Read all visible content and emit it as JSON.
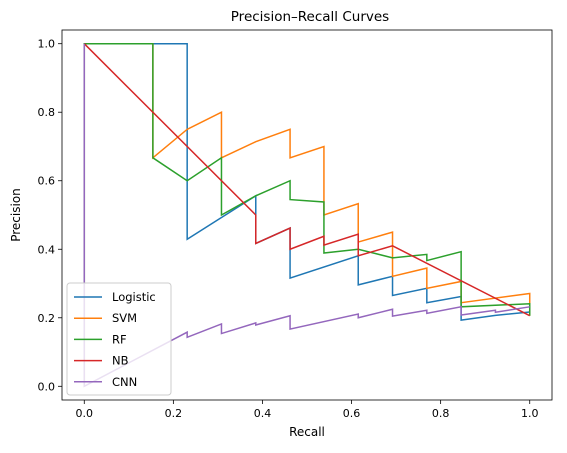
{
  "chart_data": {
    "type": "line",
    "title": "Precision–Recall Curves",
    "xlabel": "Recall",
    "ylabel": "Precision",
    "xlim": [
      -0.05,
      1.05
    ],
    "ylim": [
      -0.04,
      1.04
    ],
    "xticks": [
      0.0,
      0.2,
      0.4,
      0.6,
      0.8,
      1.0
    ],
    "yticks": [
      0.0,
      0.2,
      0.4,
      0.6,
      0.8,
      1.0
    ],
    "xtick_labels": [
      "0.0",
      "0.2",
      "0.4",
      "0.6",
      "0.8",
      "1.0"
    ],
    "ytick_labels": [
      "0.0",
      "0.2",
      "0.4",
      "0.6",
      "0.8",
      "1.0"
    ],
    "grid": false,
    "legend": "lower-left",
    "series": [
      {
        "name": "Logistic",
        "color": "#1f77b4",
        "x": [
          0.0,
          0.0,
          0.231,
          0.231,
          0.385,
          0.385,
          0.462,
          0.462,
          0.615,
          0.615,
          0.692,
          0.692,
          0.769,
          0.769,
          0.846,
          0.846,
          0.923,
          1.0
        ],
        "y": [
          0.0,
          1.0,
          1.0,
          0.429,
          0.556,
          0.417,
          0.462,
          0.316,
          0.381,
          0.296,
          0.321,
          0.265,
          0.286,
          0.244,
          0.262,
          0.193,
          0.207,
          0.217
        ]
      },
      {
        "name": "SVM",
        "color": "#ff7f0e",
        "x": [
          0.0,
          0.0,
          0.154,
          0.154,
          0.231,
          0.308,
          0.308,
          0.385,
          0.462,
          0.462,
          0.538,
          0.538,
          0.615,
          0.615,
          0.692,
          0.692,
          0.769,
          0.769,
          0.846,
          0.846,
          1.0,
          1.0
        ],
        "y": [
          0.0,
          1.0,
          1.0,
          0.667,
          0.75,
          0.8,
          0.667,
          0.714,
          0.75,
          0.667,
          0.7,
          0.5,
          0.533,
          0.421,
          0.45,
          0.321,
          0.345,
          0.286,
          0.306,
          0.244,
          0.271,
          0.206
        ]
      },
      {
        "name": "RF",
        "color": "#2ca02c",
        "x": [
          0.0,
          0.0,
          0.154,
          0.154,
          0.231,
          0.308,
          0.308,
          0.385,
          0.462,
          0.462,
          0.538,
          0.538,
          0.615,
          0.692,
          0.769,
          0.769,
          0.846,
          0.846,
          1.0,
          1.0
        ],
        "y": [
          0.0,
          1.0,
          1.0,
          0.667,
          0.6,
          0.667,
          0.5,
          0.556,
          0.6,
          0.545,
          0.538,
          0.389,
          0.4,
          0.375,
          0.385,
          0.367,
          0.393,
          0.232,
          0.241,
          0.206
        ]
      },
      {
        "name": "NB",
        "color": "#d62728",
        "x": [
          0.0,
          0.385,
          0.385,
          0.462,
          0.462,
          0.538,
          0.538,
          0.615,
          0.615,
          0.692,
          1.0
        ],
        "y": [
          1.0,
          0.5,
          0.417,
          0.462,
          0.4,
          0.438,
          0.412,
          0.444,
          0.381,
          0.41,
          0.206
        ]
      },
      {
        "name": "CNN",
        "color": "#9467bd",
        "x": [
          0.0,
          0.0,
          0.0,
          0.231,
          0.231,
          0.308,
          0.308,
          0.385,
          0.385,
          0.462,
          0.462,
          0.615,
          0.615,
          0.692,
          0.692,
          0.769,
          0.769,
          0.846,
          0.846,
          0.923,
          0.923,
          1.0
        ],
        "y": [
          1.0,
          0.0,
          0.0,
          0.158,
          0.143,
          0.182,
          0.154,
          0.185,
          0.179,
          0.206,
          0.167,
          0.211,
          0.2,
          0.225,
          0.205,
          0.222,
          0.213,
          0.232,
          0.208,
          0.222,
          0.216,
          0.232
        ]
      }
    ]
  }
}
